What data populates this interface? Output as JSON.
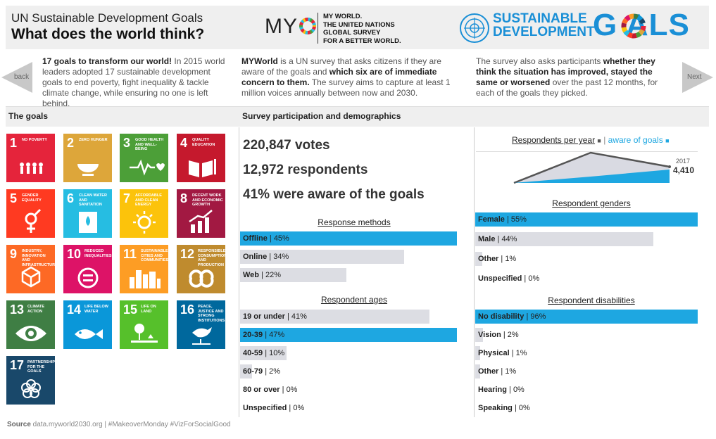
{
  "header": {
    "title_line1": "UN Sustainable Development Goals",
    "title_line2": "What does the world think?",
    "myworld_logo": "MY",
    "myworld_lines": [
      "MY WORLD.",
      "THE UNITED NATIONS",
      "GLOBAL SURVEY",
      "FOR A BETTER WORLD."
    ],
    "sdg_logo_l1": "SUSTAINABLE",
    "sdg_logo_l2": "DEVELOPMENT",
    "sdg_logo_goals": "G ALS"
  },
  "intro": {
    "p1_bold": "17 goals to transform our world!",
    "p1_rest": " In 2015 world leaders adopted 17 sustainable development goals to end poverty, fight inequality & tackle climate change, while ensuring no one is left behind.",
    "p2_bold1": "MYWorld",
    "p2_mid": " is a UN survey that asks citizens if they are aware of the goals and ",
    "p2_bold2": "which six are of immediate concern to them.",
    "p2_rest": " The survey aims to capture at least 1 million voices annually between now and 2030.",
    "p3_pre": "The survey also asks participants ",
    "p3_bold": "whether they think the situation has improved, stayed the same or worsened",
    "p3_rest": " over the past 12 months, for each of the goals they picked."
  },
  "nav": {
    "back": "back",
    "next": "Next"
  },
  "sections": {
    "goals": "The goals",
    "survey": "Survey participation and demographics"
  },
  "goals": [
    {
      "num": "1",
      "title": "No poverty",
      "color": "#e5243b"
    },
    {
      "num": "2",
      "title": "Zero hunger",
      "color": "#dda63a"
    },
    {
      "num": "3",
      "title": "Good health and well-being",
      "color": "#4c9f38"
    },
    {
      "num": "4",
      "title": "Quality education",
      "color": "#c5192d"
    },
    {
      "num": "5",
      "title": "Gender equality",
      "color": "#ff3a21"
    },
    {
      "num": "6",
      "title": "Clean water and sanitation",
      "color": "#26bde2"
    },
    {
      "num": "7",
      "title": "Affordable and clean energy",
      "color": "#fcc30b"
    },
    {
      "num": "8",
      "title": "Decent work and economic growth",
      "color": "#a21942"
    },
    {
      "num": "9",
      "title": "Industry, innovation and infrastructure",
      "color": "#fd6925"
    },
    {
      "num": "10",
      "title": "Reduced inequalities",
      "color": "#dd1367"
    },
    {
      "num": "11",
      "title": "Sustainable cities and communities",
      "color": "#fd9d24"
    },
    {
      "num": "12",
      "title": "Responsible consumption and production",
      "color": "#bf8b2e"
    },
    {
      "num": "13",
      "title": "Climate action",
      "color": "#3f7e44"
    },
    {
      "num": "14",
      "title": "Life below water",
      "color": "#0a97d9"
    },
    {
      "num": "15",
      "title": "Life on land",
      "color": "#56c02b"
    },
    {
      "num": "16",
      "title": "Peace, justice and strong institutions",
      "color": "#00689d"
    },
    {
      "num": "17",
      "title": "Partnerships for the goals",
      "color": "#19486a"
    }
  ],
  "stats": {
    "votes": "220,847 votes",
    "respondents": "12,972 respondents",
    "aware": "41% were aware of the goals"
  },
  "per_year": {
    "title": "Respondents per year",
    "legend_sep": "|",
    "aware_label": "aware of goals",
    "year_label": "2017",
    "value_label": "4,410"
  },
  "colors": {
    "highlight": "#1ea7e1",
    "grey": "#dcdde3",
    "dark": "#555"
  },
  "chart_data": [
    {
      "type": "bar",
      "title": "Response methods",
      "categories": [
        "Offline",
        "Online",
        "Web"
      ],
      "values": [
        45,
        34,
        22
      ],
      "unit": "%",
      "highlight": [
        true,
        false,
        false
      ]
    },
    {
      "type": "bar",
      "title": "Respondent ages",
      "categories": [
        "19 or under",
        "20-39",
        "40-59",
        "60-79",
        "80 or over",
        "Unspecified"
      ],
      "values": [
        41,
        47,
        10,
        2,
        0,
        0
      ],
      "unit": "%",
      "highlight": [
        false,
        true,
        false,
        false,
        false,
        false
      ]
    },
    {
      "type": "bar",
      "title": "Respondent genders",
      "categories": [
        "Female",
        "Male",
        "Other",
        "Unspecified"
      ],
      "values": [
        55,
        44,
        1,
        0
      ],
      "unit": "%",
      "highlight": [
        true,
        false,
        false,
        false
      ]
    },
    {
      "type": "bar",
      "title": "Respondent disabilities",
      "categories": [
        "No disability",
        "Vision",
        "Physical",
        "Other",
        "Hearing",
        "Speaking"
      ],
      "values": [
        96,
        2,
        1,
        1,
        0,
        0
      ],
      "unit": "%",
      "highlight": [
        true,
        false,
        false,
        false,
        false,
        false
      ]
    }
  ],
  "source": {
    "label": "Source",
    "text": " data.myworld2030.org | #MakeoverMonday #VizForSocialGood"
  }
}
